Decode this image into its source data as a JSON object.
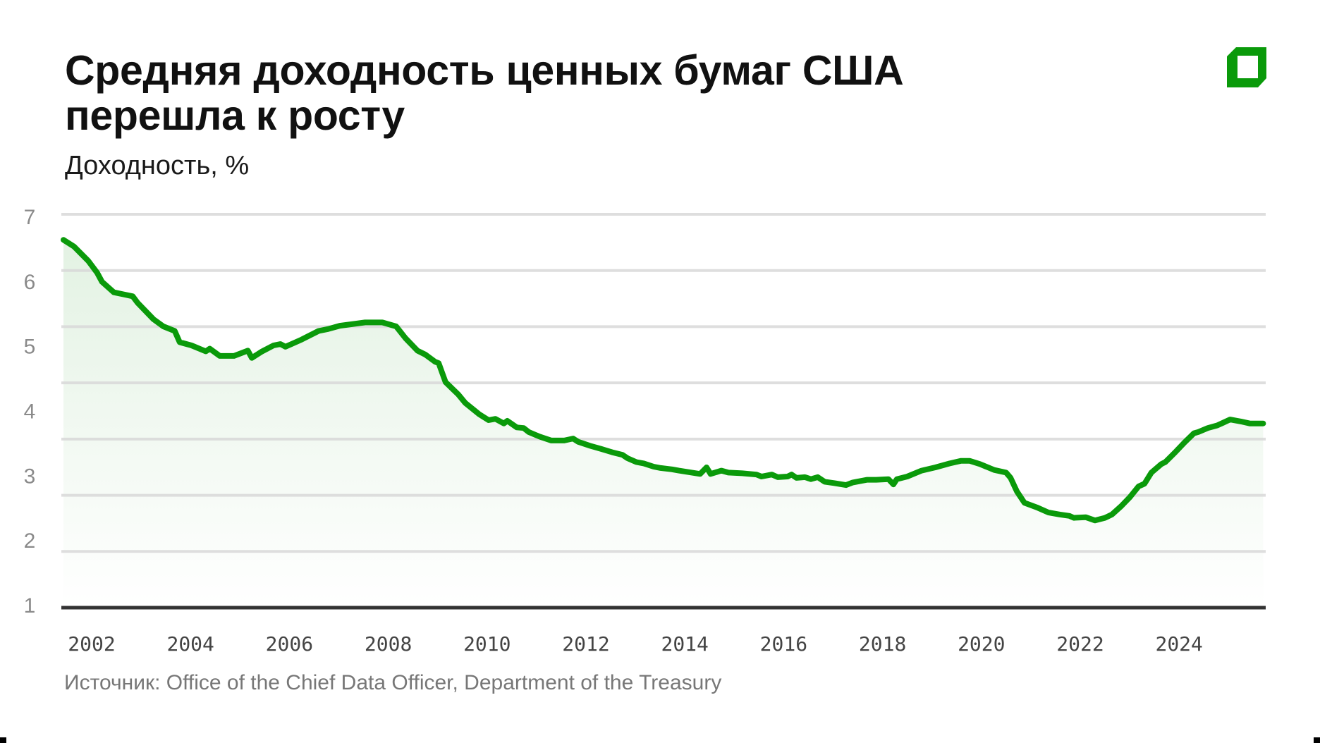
{
  "header": {
    "title_line1": "Средняя доходность ценных бумаг США",
    "title_line2": "перешла к росту",
    "subtitle": "Доходность, %"
  },
  "logo": {
    "icon": "brand-logo-icon",
    "color": "#0a9a0a"
  },
  "footer": {
    "source": "Источник: Office of the Chief Data Officer, Department of the Treasury"
  },
  "colors": {
    "line": "#0a9a0a",
    "fill_top": "#e3f2e3",
    "fill_bottom": "#ffffff",
    "grid": "#d9d9d9",
    "baseline": "#333333"
  },
  "chart_data": {
    "type": "area",
    "title": "Средняя доходность ценных бумаг США перешла к росту",
    "subtitle": "Доходность, %",
    "xlabel": "",
    "ylabel": "Доходность, %",
    "ylim": [
      1,
      7
    ],
    "xlim": [
      2001.4,
      2025.7
    ],
    "y_ticks": [
      "7",
      "6",
      "5",
      "4",
      "3",
      "2",
      "1"
    ],
    "x_ticks": [
      "2002",
      "2004",
      "2006",
      "2008",
      "2010",
      "2012",
      "2014",
      "2016",
      "2018",
      "2020",
      "2022",
      "2024"
    ],
    "grid": true,
    "gridline_count": 8,
    "legend": null,
    "source": "Источник: Office of the Chief Data Officer, Department of the Treasury",
    "series": [
      {
        "name": "Средняя доходность",
        "points": [
          [
            2001.43,
            6.61
          ],
          [
            2001.64,
            6.51
          ],
          [
            2001.93,
            6.29
          ],
          [
            2002.11,
            6.11
          ],
          [
            2002.21,
            5.97
          ],
          [
            2002.45,
            5.81
          ],
          [
            2002.64,
            5.78
          ],
          [
            2002.83,
            5.75
          ],
          [
            2002.93,
            5.65
          ],
          [
            2003.25,
            5.4
          ],
          [
            2003.45,
            5.29
          ],
          [
            2003.68,
            5.22
          ],
          [
            2003.78,
            5.05
          ],
          [
            2004.02,
            5.0
          ],
          [
            2004.31,
            4.91
          ],
          [
            2004.39,
            4.95
          ],
          [
            2004.59,
            4.84
          ],
          [
            2004.88,
            4.84
          ],
          [
            2005.16,
            4.92
          ],
          [
            2005.24,
            4.81
          ],
          [
            2005.45,
            4.91
          ],
          [
            2005.68,
            5.0
          ],
          [
            2005.82,
            5.02
          ],
          [
            2005.92,
            4.98
          ],
          [
            2006.25,
            5.09
          ],
          [
            2006.59,
            5.22
          ],
          [
            2006.78,
            5.25
          ],
          [
            2007.02,
            5.3
          ],
          [
            2007.53,
            5.35
          ],
          [
            2007.88,
            5.35
          ],
          [
            2008.16,
            5.29
          ],
          [
            2008.35,
            5.11
          ],
          [
            2008.49,
            5.0
          ],
          [
            2008.59,
            4.92
          ],
          [
            2008.75,
            4.86
          ],
          [
            2008.95,
            4.75
          ],
          [
            2009.02,
            4.73
          ],
          [
            2009.16,
            4.44
          ],
          [
            2009.42,
            4.25
          ],
          [
            2009.56,
            4.12
          ],
          [
            2009.84,
            3.95
          ],
          [
            2010.03,
            3.86
          ],
          [
            2010.17,
            3.88
          ],
          [
            2010.34,
            3.81
          ],
          [
            2010.41,
            3.85
          ],
          [
            2010.6,
            3.75
          ],
          [
            2010.74,
            3.74
          ],
          [
            2010.84,
            3.68
          ],
          [
            2011.06,
            3.61
          ],
          [
            2011.3,
            3.55
          ],
          [
            2011.56,
            3.55
          ],
          [
            2011.74,
            3.58
          ],
          [
            2011.84,
            3.53
          ],
          [
            2012.08,
            3.47
          ],
          [
            2012.31,
            3.42
          ],
          [
            2012.53,
            3.37
          ],
          [
            2012.74,
            3.33
          ],
          [
            2012.84,
            3.28
          ],
          [
            2013.02,
            3.22
          ],
          [
            2013.17,
            3.2
          ],
          [
            2013.37,
            3.15
          ],
          [
            2013.51,
            3.13
          ],
          [
            2013.74,
            3.11
          ],
          [
            2013.88,
            3.09
          ],
          [
            2014.31,
            3.04
          ],
          [
            2014.44,
            3.14
          ],
          [
            2014.52,
            3.04
          ],
          [
            2014.74,
            3.09
          ],
          [
            2014.88,
            3.06
          ],
          [
            2015.16,
            3.05
          ],
          [
            2015.45,
            3.03
          ],
          [
            2015.55,
            3.0
          ],
          [
            2015.76,
            3.03
          ],
          [
            2015.88,
            2.99
          ],
          [
            2016.08,
            3.0
          ],
          [
            2016.16,
            3.03
          ],
          [
            2016.26,
            2.98
          ],
          [
            2016.43,
            2.99
          ],
          [
            2016.55,
            2.96
          ],
          [
            2016.69,
            2.99
          ],
          [
            2016.83,
            2.92
          ],
          [
            2017.02,
            2.9
          ],
          [
            2017.26,
            2.87
          ],
          [
            2017.4,
            2.91
          ],
          [
            2017.69,
            2.95
          ],
          [
            2017.87,
            2.95
          ],
          [
            2018.12,
            2.96
          ],
          [
            2018.22,
            2.88
          ],
          [
            2018.29,
            2.96
          ],
          [
            2018.5,
            3.0
          ],
          [
            2018.79,
            3.09
          ],
          [
            2019.07,
            3.14
          ],
          [
            2019.36,
            3.2
          ],
          [
            2019.59,
            3.24
          ],
          [
            2019.76,
            3.24
          ],
          [
            2019.97,
            3.19
          ],
          [
            2020.26,
            3.1
          ],
          [
            2020.5,
            3.06
          ],
          [
            2020.59,
            2.98
          ],
          [
            2020.72,
            2.77
          ],
          [
            2020.87,
            2.6
          ],
          [
            2021.12,
            2.53
          ],
          [
            2021.36,
            2.45
          ],
          [
            2021.59,
            2.42
          ],
          [
            2021.78,
            2.4
          ],
          [
            2021.87,
            2.37
          ],
          [
            2022.11,
            2.38
          ],
          [
            2022.3,
            2.33
          ],
          [
            2022.5,
            2.37
          ],
          [
            2022.64,
            2.42
          ],
          [
            2022.83,
            2.55
          ],
          [
            2023.01,
            2.69
          ],
          [
            2023.18,
            2.85
          ],
          [
            2023.3,
            2.89
          ],
          [
            2023.44,
            3.06
          ],
          [
            2023.64,
            3.19
          ],
          [
            2023.72,
            3.22
          ],
          [
            2023.92,
            3.37
          ],
          [
            2024.11,
            3.52
          ],
          [
            2024.3,
            3.66
          ],
          [
            2024.39,
            3.68
          ],
          [
            2024.58,
            3.74
          ],
          [
            2024.77,
            3.78
          ],
          [
            2024.89,
            3.82
          ],
          [
            2025.03,
            3.87
          ],
          [
            2025.25,
            3.84
          ],
          [
            2025.43,
            3.81
          ],
          [
            2025.7,
            3.81
          ]
        ]
      }
    ]
  }
}
